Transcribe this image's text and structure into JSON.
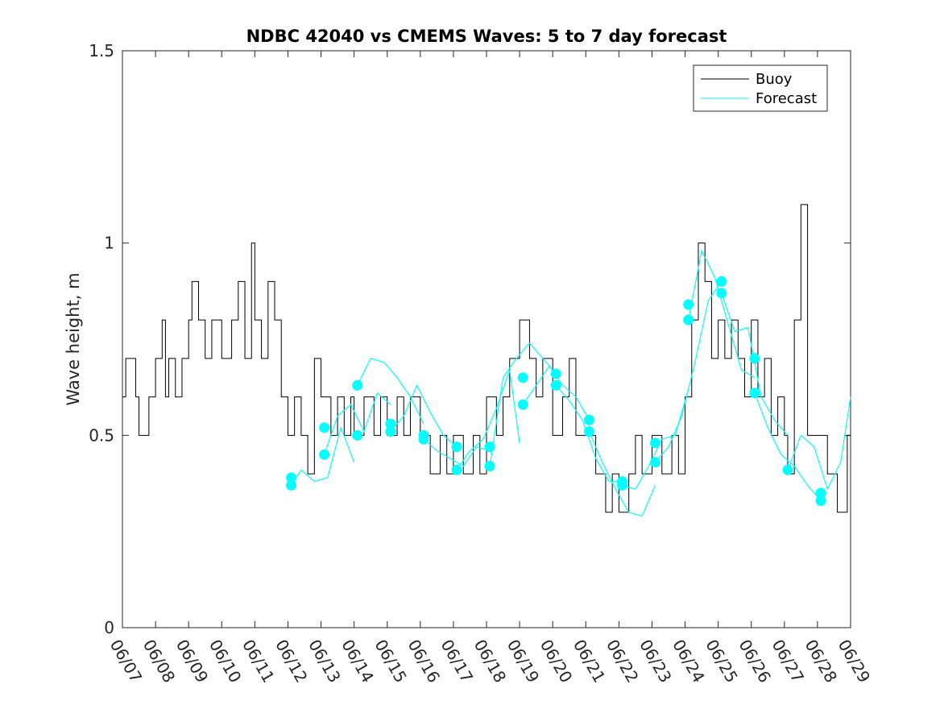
{
  "chart_data": {
    "type": "line",
    "title": "NDBC 42040 vs CMEMS Waves: 5 to 7 day forecast",
    "xlabel": "",
    "ylabel": "Wave height, m",
    "xlim": [
      "06/07",
      "06/29"
    ],
    "ylim": [
      0,
      1.5
    ],
    "x_ticks": [
      "06/07",
      "06/08",
      "06/09",
      "06/10",
      "06/11",
      "06/12",
      "06/13",
      "06/14",
      "06/15",
      "06/16",
      "06/17",
      "06/18",
      "06/19",
      "06/20",
      "06/21",
      "06/22",
      "06/23",
      "06/24",
      "06/25",
      "06/26",
      "06/27",
      "06/28",
      "06/29"
    ],
    "y_ticks": [
      "0",
      "0.5",
      "1",
      "1.5"
    ],
    "y_tick_values": [
      0,
      0.5,
      1,
      1.5
    ],
    "grid": false,
    "legend": {
      "position": "top-right",
      "entries": [
        "Buoy",
        "Forecast"
      ]
    },
    "colors": {
      "buoy": "#000000",
      "forecast": "#00ffff"
    },
    "buoy": {
      "name": "Buoy",
      "x": [
        "06/07",
        "06/07.1",
        "06/07.4",
        "06/07.5",
        "06/07.8",
        "06/08",
        "06/08.2",
        "06/08.3",
        "06/08.4",
        "06/08.6",
        "06/08.8",
        "06/09",
        "06/09.1",
        "06/09.3",
        "06/09.5",
        "06/09.7",
        "06/10",
        "06/10.3",
        "06/10.5",
        "06/10.7",
        "06/10.9",
        "06/11",
        "06/11.2",
        "06/11.4",
        "06/11.6",
        "06/11.8",
        "06/12",
        "06/12.2",
        "06/12.4",
        "06/12.6",
        "06/12.8",
        "06/13",
        "06/13.3",
        "06/13.5",
        "06/13.7",
        "06/13.9",
        "06/14",
        "06/14.3",
        "06/14.6",
        "06/14.8",
        "06/15",
        "06/15.3",
        "06/15.5",
        "06/15.7",
        "06/16",
        "06/16.3",
        "06/16.6",
        "06/16.8",
        "06/17",
        "06/17.3",
        "06/17.6",
        "06/17.8",
        "06/18",
        "06/18.3",
        "06/18.5",
        "06/18.7",
        "06/19",
        "06/19.3",
        "06/19.5",
        "06/19.7",
        "06/20",
        "06/20.3",
        "06/20.5",
        "06/20.7",
        "06/21",
        "06/21.3",
        "06/21.6",
        "06/21.8",
        "06/22",
        "06/22.3",
        "06/22.5",
        "06/22.7",
        "06/23",
        "06/23.3",
        "06/23.6",
        "06/23.8",
        "06/24",
        "06/24.2",
        "06/24.4",
        "06/24.6",
        "06/24.8",
        "06/25",
        "06/25.2",
        "06/25.4",
        "06/25.6",
        "06/25.8",
        "06/26",
        "06/26.2",
        "06/26.4",
        "06/26.6",
        "06/26.8",
        "06/27",
        "06/27.1",
        "06/27.3",
        "06/27.5",
        "06/27.7",
        "06/28",
        "06/28.3",
        "06/28.6",
        "06/28.9",
        "06/29"
      ],
      "values": [
        0.6,
        0.7,
        0.6,
        0.5,
        0.6,
        0.7,
        0.8,
        0.6,
        0.7,
        0.6,
        0.7,
        0.8,
        0.9,
        0.8,
        0.7,
        0.8,
        0.7,
        0.8,
        0.9,
        0.7,
        1.0,
        0.8,
        0.7,
        0.9,
        0.8,
        0.6,
        0.5,
        0.6,
        0.5,
        0.4,
        0.7,
        0.6,
        0.5,
        0.6,
        0.5,
        0.6,
        0.5,
        0.6,
        0.5,
        0.6,
        0.5,
        0.6,
        0.5,
        0.6,
        0.5,
        0.4,
        0.5,
        0.4,
        0.5,
        0.4,
        0.5,
        0.4,
        0.6,
        0.5,
        0.6,
        0.7,
        0.8,
        0.7,
        0.6,
        0.7,
        0.5,
        0.6,
        0.7,
        0.5,
        0.5,
        0.4,
        0.3,
        0.4,
        0.3,
        0.4,
        0.5,
        0.4,
        0.5,
        0.4,
        0.5,
        0.4,
        0.6,
        0.8,
        1.0,
        0.9,
        0.7,
        0.8,
        0.7,
        0.8,
        0.7,
        0.6,
        0.8,
        0.6,
        0.7,
        0.5,
        0.6,
        0.5,
        0.4,
        0.8,
        1.1,
        0.5,
        0.5,
        0.4,
        0.3,
        0.5,
        0.5
      ]
    },
    "forecast_series": [
      {
        "start": "06/12",
        "x": [
          "06/12.1",
          "06/12.4",
          "06/12.8",
          "06/13.2",
          "06/13.6",
          "06/14"
        ],
        "values": [
          0.37,
          0.41,
          0.38,
          0.39,
          0.52,
          0.43
        ]
      },
      {
        "start": "06/13",
        "x": [
          "06/13.1",
          "06/13.5",
          "06/13.9",
          "06/14.3",
          "06/14.7",
          "06/15.1"
        ],
        "values": [
          0.45,
          0.55,
          0.58,
          0.51,
          0.61,
          0.58
        ]
      },
      {
        "start": "06/14",
        "x": [
          "06/14.1",
          "06/14.5",
          "06/14.9",
          "06/15.3",
          "06/15.7",
          "06/16.1"
        ],
        "values": [
          0.63,
          0.7,
          0.69,
          0.65,
          0.6,
          0.53
        ]
      },
      {
        "start": "06/15",
        "x": [
          "06/15.1",
          "06/15.5",
          "06/15.9",
          "06/16.3",
          "06/16.7",
          "06/17.1"
        ],
        "values": [
          0.51,
          0.55,
          0.63,
          0.56,
          0.5,
          0.47
        ]
      },
      {
        "start": "06/16",
        "x": [
          "06/16.1",
          "06/16.5",
          "06/16.9",
          "06/17.3",
          "06/17.7",
          "06/18.1"
        ],
        "values": [
          0.49,
          0.46,
          0.44,
          0.42,
          0.47,
          0.46
        ]
      },
      {
        "start": "06/17",
        "x": [
          "06/17.1",
          "06/17.5",
          "06/17.9",
          "06/18.3",
          "06/18.7",
          "06/19"
        ],
        "values": [
          0.41,
          0.46,
          0.49,
          0.57,
          0.67,
          0.48
        ]
      },
      {
        "start": "06/18",
        "x": [
          "06/18.1",
          "06/18.5",
          "06/18.9",
          "06/19.3",
          "06/19.7",
          "06/20.1"
        ],
        "values": [
          0.42,
          0.65,
          0.7,
          0.74,
          0.7,
          0.66
        ]
      },
      {
        "start": "06/19",
        "x": [
          "06/19.1",
          "06/19.5",
          "06/19.9",
          "06/20.3",
          "06/20.7",
          "06/21.1"
        ],
        "values": [
          0.58,
          0.63,
          0.68,
          0.63,
          0.6,
          0.54
        ]
      },
      {
        "start": "06/20",
        "x": [
          "06/20.1",
          "06/20.5",
          "06/20.9",
          "06/21.3",
          "06/21.7",
          "06/22.1"
        ],
        "values": [
          0.63,
          0.59,
          0.54,
          0.44,
          0.38,
          0.38
        ]
      },
      {
        "start": "06/21",
        "x": [
          "06/21.1",
          "06/21.5",
          "06/21.9",
          "06/22.3",
          "06/22.7",
          "06/23.1"
        ],
        "values": [
          0.51,
          0.43,
          0.36,
          0.3,
          0.29,
          0.37
        ]
      },
      {
        "start": "06/22",
        "x": [
          "06/22.1",
          "06/22.5",
          "06/22.9",
          "06/23.3",
          "06/23.7",
          "06/24.1"
        ],
        "values": [
          0.37,
          0.36,
          0.42,
          0.49,
          0.5,
          0.62
        ]
      },
      {
        "start": "06/23",
        "x": [
          "06/23.1",
          "06/23.5",
          "06/23.9",
          "06/24.3",
          "06/24.7",
          "06/25.1"
        ],
        "values": [
          0.43,
          0.47,
          0.55,
          0.69,
          0.85,
          0.9
        ]
      },
      {
        "start": "06/24",
        "x": [
          "06/24.1",
          "06/24.5",
          "06/24.9",
          "06/25.3",
          "06/25.7",
          "06/26.1"
        ],
        "values": [
          0.8,
          0.98,
          0.91,
          0.79,
          0.67,
          0.65
        ]
      },
      {
        "start": "06/25",
        "x": [
          "06/25.1",
          "06/25.5",
          "06/25.9",
          "06/26.3",
          "06/26.7",
          "06/27.1"
        ],
        "values": [
          0.87,
          0.77,
          0.78,
          0.6,
          0.54,
          0.5
        ]
      },
      {
        "start": "06/26",
        "x": [
          "06/26.1",
          "06/26.5",
          "06/26.9",
          "06/27.3",
          "06/27.7",
          "06/28.1"
        ],
        "values": [
          0.61,
          0.52,
          0.45,
          0.42,
          0.37,
          0.33
        ]
      },
      {
        "start": "06/27",
        "x": [
          "06/27.1",
          "06/27.5",
          "06/27.9",
          "06/28.3",
          "06/28.7",
          "06/29"
        ],
        "values": [
          0.41,
          0.5,
          0.47,
          0.36,
          0.43,
          0.6
        ]
      }
    ],
    "forecast_markers": {
      "x": [
        "06/12.1",
        "06/12.1",
        "06/13.1",
        "06/13.1",
        "06/14.1",
        "06/14.1",
        "06/15.1",
        "06/15.1",
        "06/16.1",
        "06/16.1",
        "06/17.1",
        "06/17.1",
        "06/18.1",
        "06/18.1",
        "06/19.1",
        "06/19.1",
        "06/20.1",
        "06/20.1",
        "06/21.1",
        "06/21.1",
        "06/22.1",
        "06/22.1",
        "06/23.1",
        "06/23.1",
        "06/24.1",
        "06/24.1",
        "06/25.1",
        "06/25.1",
        "06/26.1",
        "06/26.1",
        "06/27.1",
        "06/28.1",
        "06/28.1"
      ],
      "values": [
        0.39,
        0.37,
        0.52,
        0.45,
        0.63,
        0.5,
        0.53,
        0.51,
        0.5,
        0.49,
        0.47,
        0.41,
        0.47,
        0.42,
        0.65,
        0.58,
        0.66,
        0.63,
        0.54,
        0.51,
        0.38,
        0.37,
        0.48,
        0.43,
        0.84,
        0.8,
        0.9,
        0.87,
        0.7,
        0.61,
        0.41,
        0.35,
        0.33
      ]
    }
  }
}
